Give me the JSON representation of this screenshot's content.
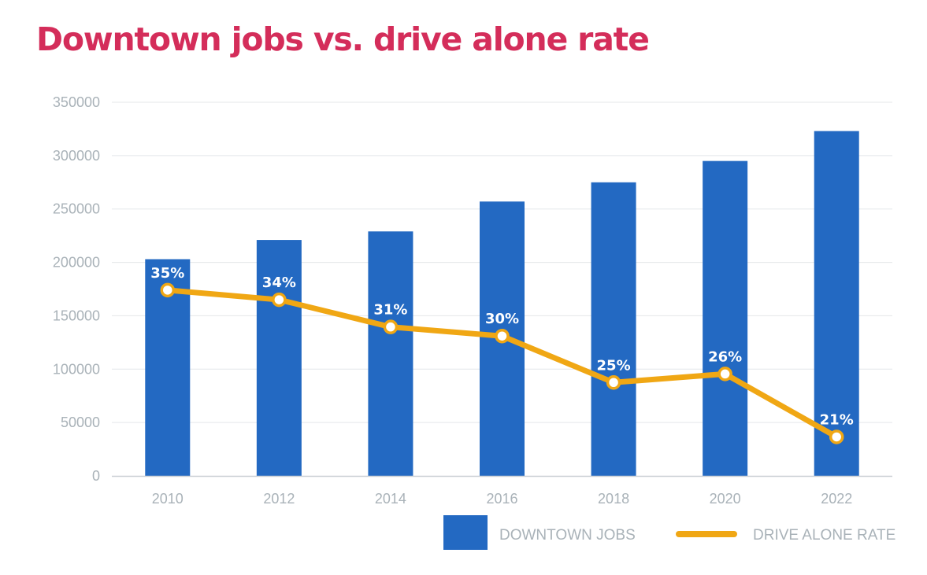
{
  "chart_data": {
    "type": "bar+line",
    "title": "Downtown jobs vs. drive alone rate",
    "xlabel": "",
    "ylabel": "",
    "categories": [
      "2010",
      "2012",
      "2014",
      "2016",
      "2018",
      "2020",
      "2022"
    ],
    "ylim": [
      0,
      350000
    ],
    "yticks": [
      0,
      50000,
      100000,
      150000,
      200000,
      250000,
      300000,
      350000
    ],
    "grid": true,
    "legend_position": "bottom-right",
    "series": [
      {
        "name": "DOWNTOWN JOBS",
        "type": "bar",
        "color": "#2369c2",
        "values": [
          203000,
          221000,
          229000,
          257000,
          275000,
          295000,
          323000
        ]
      },
      {
        "name": "DRIVE ALONE RATE",
        "type": "line",
        "color": "#f0a714",
        "values": [
          174000,
          165000,
          139500,
          131000,
          87500,
          95500,
          36500
        ],
        "labels": [
          "35%",
          "34%",
          "31%",
          "30%",
          "25%",
          "26%",
          "21%"
        ]
      }
    ],
    "colors": {
      "title": "#d42d5a",
      "grid": "#e4e7ea",
      "axis": "#c9ced3",
      "tick_text": "#a9b2b8",
      "legend_text": "#a9b2b8",
      "data_label": "#ffffff",
      "marker_fill": "#ffffff"
    }
  }
}
